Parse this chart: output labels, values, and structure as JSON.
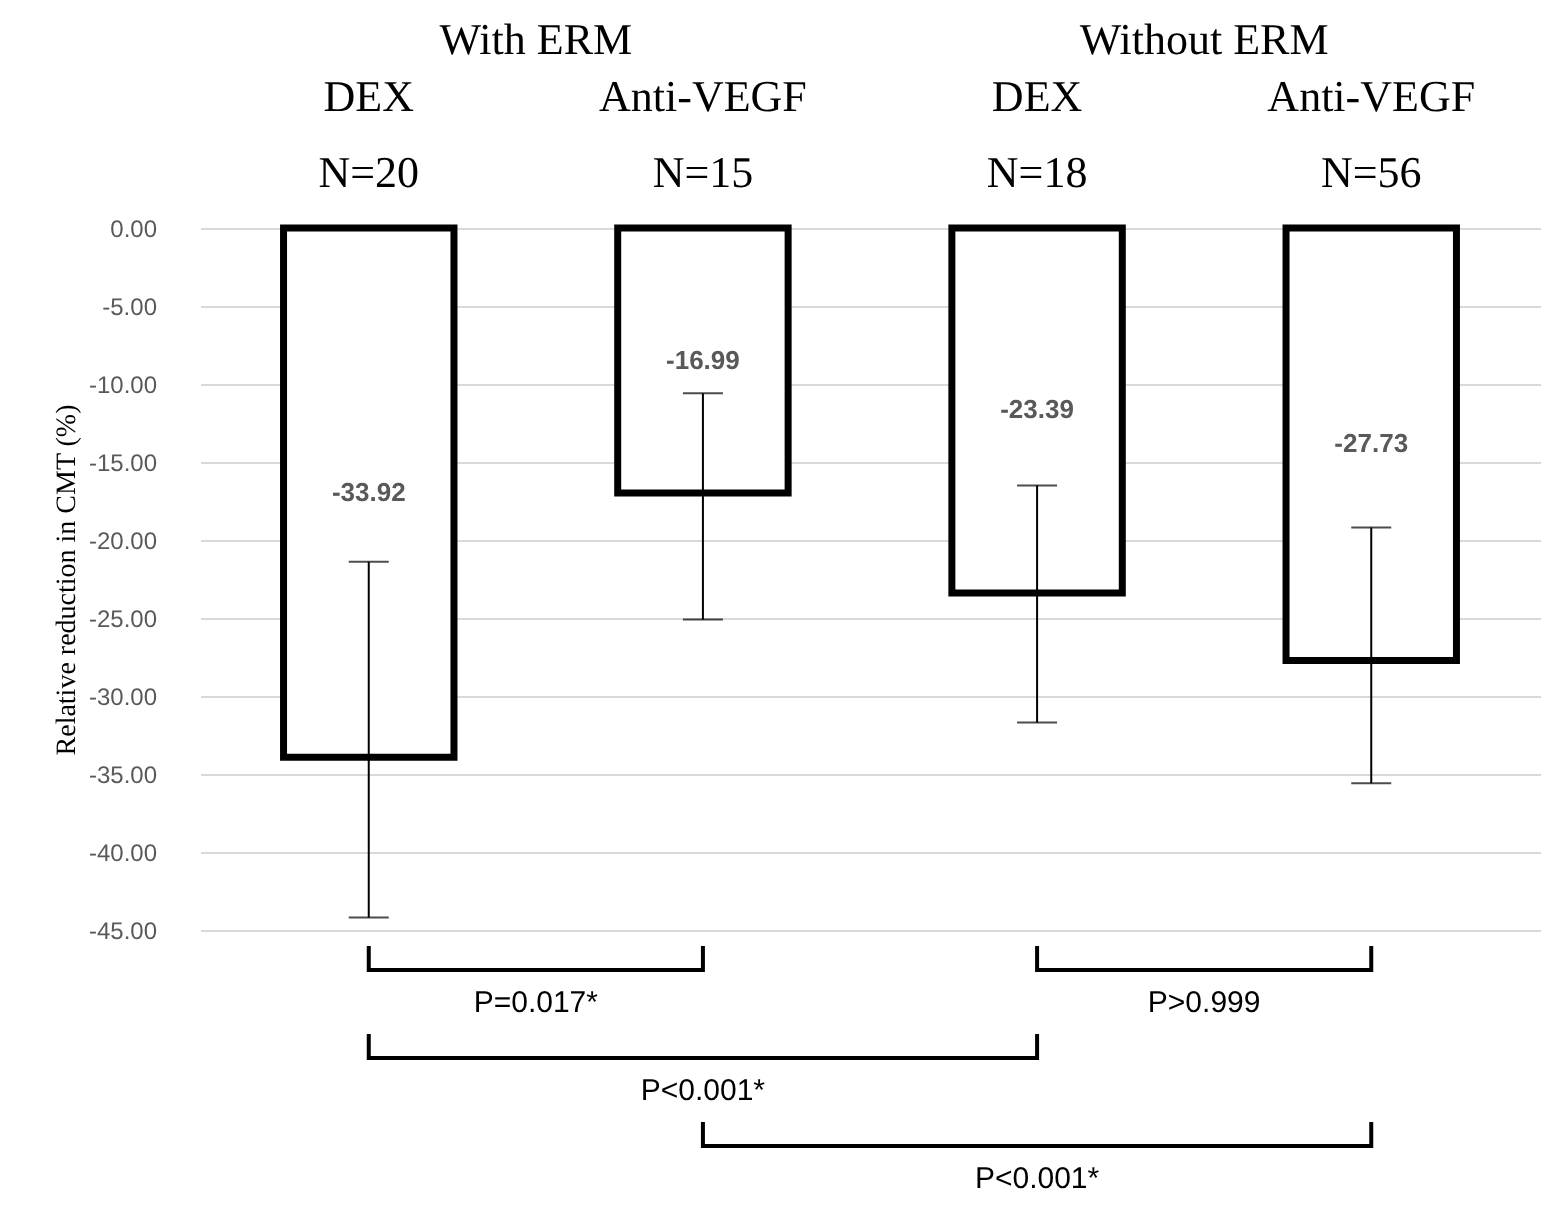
{
  "chart_data": {
    "type": "bar",
    "categories": [
      "DEX\nN=20",
      "Anti-VEGF\nN=15",
      "DEX\nN=18",
      "Anti-VEGF\nN=56"
    ],
    "values": [
      -33.92,
      -16.99,
      -23.39,
      -27.73
    ],
    "errors": [
      [
        -44.2,
        -21.4
      ],
      [
        -25.1,
        -10.6
      ],
      [
        -31.7,
        -16.5
      ],
      [
        -35.6,
        -19.2
      ]
    ],
    "color": "#ffffff",
    "data_labels": true,
    "ylabel": "Relative reduction in CMT (%)",
    "ylim": [
      -45,
      0
    ],
    "yticks": [
      {
        "value": 0,
        "label": "0.00"
      },
      {
        "value": -5,
        "label": "-5.00"
      },
      {
        "value": -10,
        "label": "-10.00"
      },
      {
        "value": -15,
        "label": "-15.00"
      },
      {
        "value": -20,
        "label": "-20.00"
      },
      {
        "value": -25,
        "label": "-25.00"
      },
      {
        "value": -30,
        "label": "-30.00"
      },
      {
        "value": -35,
        "label": "-35.00"
      },
      {
        "value": -40,
        "label": "-40.00"
      },
      {
        "value": -45,
        "label": "-45.00"
      }
    ],
    "grid": "y",
    "annotations": [
      "P=0.017*",
      "P>0.999",
      "P<0.001*",
      "P<0.001*",
      "With ERM",
      "Without ERM"
    ]
  }
}
